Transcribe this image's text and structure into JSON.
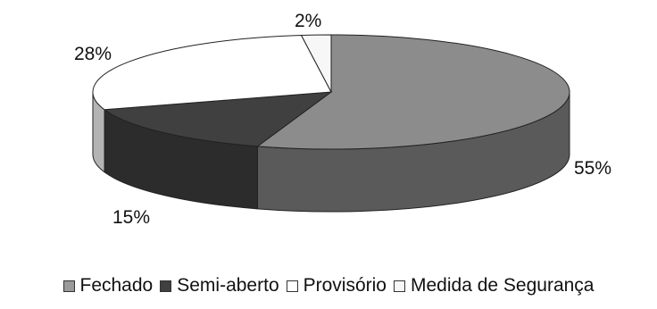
{
  "chart_data": {
    "type": "pie",
    "style": "3d",
    "categories": [
      "Fechado",
      "Semi-aberto",
      "Provisório",
      "Medida de Segurança"
    ],
    "values": [
      55,
      15,
      28,
      2
    ],
    "labels": [
      "55%",
      "15%",
      "28%",
      "2%"
    ],
    "colors": [
      "#8c8c8c",
      "#404040",
      "#ffffff",
      "#f7f7f7"
    ],
    "side_colors": [
      "#5a5a5a",
      "#2c2c2c",
      "#b4b4b4",
      "#c8c8c8"
    ],
    "legend_position": "bottom",
    "title": ""
  }
}
